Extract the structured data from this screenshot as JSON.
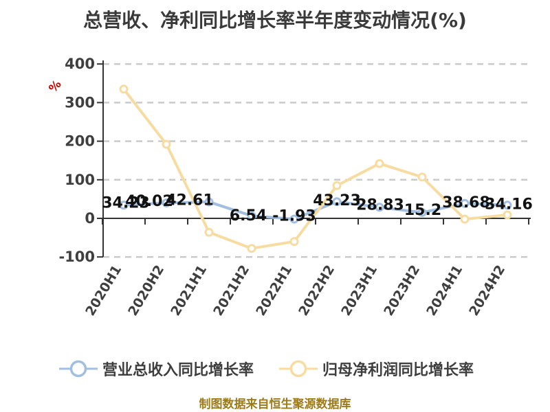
{
  "title": "总营收、净利同比增长率半年度变动情况(%)",
  "y_axis_unit": "%",
  "footer": {
    "caption": "制图数据来自恒生聚源数据库"
  },
  "legend": [
    {
      "label": "营业总收入同比增长率",
      "color": "#A2BEE1"
    },
    {
      "label": "归母净利润同比增长率",
      "color": "#F7DCA2"
    }
  ],
  "colors": {
    "title_text": "#3A3A3A",
    "axis_line": "#333333",
    "axis_label": "#3F3F3F",
    "gridline": "#CBCBCB",
    "data_label": "#121212",
    "revenue_line": "#A2BEE1",
    "profit_line": "#F7DCA2",
    "marker_fill": "#FFFFFF",
    "unit_label": "#C80000",
    "footer_text": "#9E7B16"
  },
  "chart_data": {
    "type": "line",
    "categories": [
      "2020H1",
      "2020H2",
      "2021H1",
      "2021H2",
      "2022H1",
      "2022H2",
      "2023H1",
      "2023H2",
      "2024H1",
      "2024H2"
    ],
    "series": [
      {
        "name": "营业总收入同比增长率",
        "color": "#A2BEE1",
        "values": [
          34.23,
          40.02,
          42.61,
          6.54,
          -1.93,
          43.23,
          28.83,
          15.2,
          38.68,
          34.16
        ],
        "labels_shown": true
      },
      {
        "name": "归母净利润同比增长率",
        "color": "#F7DCA2",
        "values": [
          335,
          192,
          -36,
          -78,
          -60,
          85,
          142,
          107,
          -2,
          9
        ],
        "labels_shown": false,
        "values_estimated": true
      }
    ],
    "title": "总营收、净利同比增长率半年度变动情况(%)",
    "xlabel": "",
    "ylabel": "%",
    "ylim": [
      -100,
      400
    ],
    "y_ticks": [
      400,
      300,
      200,
      100,
      0,
      -100
    ],
    "grid": "horizontal dashed",
    "legend_position": "bottom",
    "x_labels_rotated": true
  }
}
